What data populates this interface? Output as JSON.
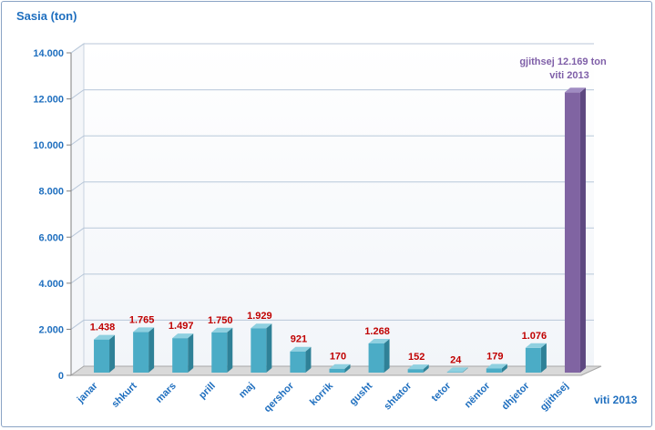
{
  "chart_data": {
    "type": "bar",
    "ylabel": "Sasia (ton)",
    "xlabel": "viti 2013",
    "ylim": [
      0,
      14000
    ],
    "yticks": [
      0,
      2000,
      4000,
      6000,
      8000,
      10000,
      12000,
      14000
    ],
    "ytick_labels": [
      "0",
      "2.000",
      "4.000",
      "6.000",
      "8.000",
      "10.000",
      "12.000",
      "14.000"
    ],
    "categories": [
      "janar",
      "shkurt",
      "mars",
      "prill",
      "maj",
      "qershor",
      "korrik",
      "gusht",
      "shtator",
      "tetor",
      "nëntor",
      "dhjetor",
      "gjithsej"
    ],
    "values": [
      1438,
      1765,
      1497,
      1750,
      1929,
      921,
      170,
      1268,
      152,
      24,
      179,
      1076,
      12169
    ],
    "value_labels": [
      "1.438",
      "1.765",
      "1.497",
      "1.750",
      "1.929",
      "921",
      "170",
      "1.268",
      "152",
      "24",
      "179",
      "1.076",
      ""
    ],
    "annotation": {
      "line1": "gjithsej 12.169 ton",
      "line2": "viti 2013"
    },
    "grid": true,
    "colors": {
      "monthly_bar": "#4bacc6",
      "total_bar": "#8064a2",
      "value_label": "#c00000",
      "axis_text": "#1f6fbf",
      "annotation": "#7f5fa8"
    }
  }
}
